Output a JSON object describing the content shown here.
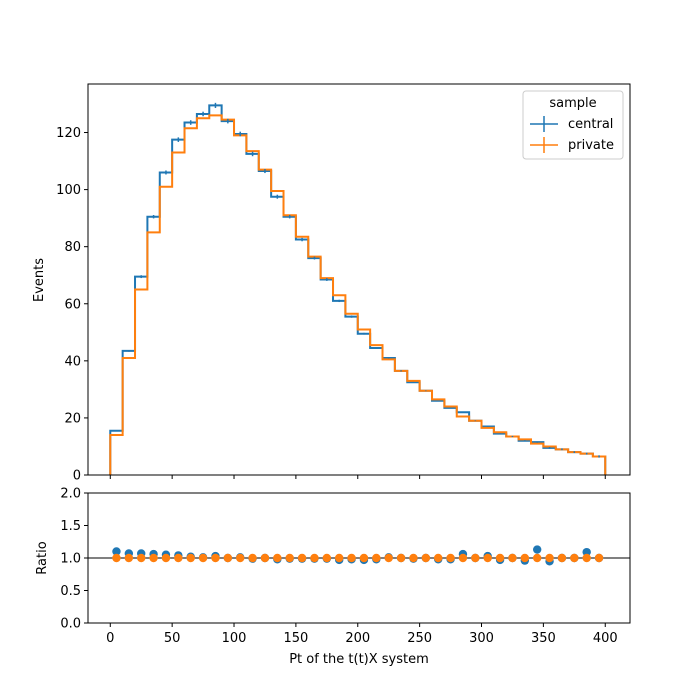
{
  "chart_data": {
    "type": "histogram-with-ratio",
    "bin_edges": [
      0,
      10,
      20,
      30,
      40,
      50,
      60,
      70,
      80,
      90,
      100,
      110,
      120,
      130,
      140,
      150,
      160,
      170,
      180,
      190,
      200,
      210,
      220,
      230,
      240,
      250,
      260,
      270,
      280,
      290,
      300,
      310,
      320,
      330,
      340,
      350,
      360,
      370,
      380,
      390,
      400
    ],
    "series": [
      {
        "name": "central",
        "color": "#1f77b4",
        "values": [
          15.5,
          43.5,
          69.5,
          90.5,
          106,
          117.5,
          123.5,
          126.5,
          129.5,
          124,
          119.5,
          112.5,
          106.5,
          97.5,
          90.5,
          82.5,
          76,
          68.5,
          61,
          55.5,
          49.5,
          44.5,
          41,
          36.5,
          32.5,
          29.5,
          26,
          23.5,
          22,
          19,
          17,
          14.5,
          13.5,
          12,
          11.5,
          9.5,
          9,
          8,
          7.5,
          6.5
        ],
        "errors": [
          0.6,
          1,
          1.2,
          1.3,
          1.4,
          1.5,
          1.5,
          1.5,
          1.6,
          1.5,
          1.5,
          1.5,
          1.4,
          1.4,
          1.3,
          1.3,
          1.2,
          1.2,
          1.1,
          1.1,
          1.0,
          1.0,
          0.9,
          0.9,
          0.8,
          0.8,
          0.8,
          0.7,
          0.7,
          0.6,
          0.6,
          0.6,
          0.5,
          0.5,
          0.5,
          0.4,
          0.4,
          0.4,
          0.4,
          0.3
        ]
      },
      {
        "name": "private",
        "color": "#ff7f0e",
        "values": [
          14,
          41,
          65,
          85,
          101,
          113,
          121.5,
          125,
          126,
          124.5,
          119,
          113.5,
          107,
          99.5,
          91,
          83.5,
          76.5,
          69,
          63,
          56.5,
          51,
          45.5,
          40.5,
          36.5,
          33,
          29.5,
          26.5,
          24,
          20.5,
          19,
          16.5,
          15,
          13.5,
          12.5,
          11,
          10,
          9,
          8,
          7.5,
          6.5
        ]
      }
    ],
    "ratio": {
      "central": [
        1.1,
        1.07,
        1.07,
        1.06,
        1.05,
        1.04,
        1.02,
        1.01,
        1.03,
        1.0,
        1.01,
        0.99,
        1.0,
        0.98,
        0.99,
        0.99,
        0.99,
        0.99,
        0.97,
        0.98,
        0.97,
        0.98,
        1.01,
        1.0,
        0.99,
        1.0,
        0.98,
        0.98,
        1.06,
        1.0,
        1.03,
        0.97,
        1.0,
        0.96,
        1.13,
        0.95,
        1.0,
        1.0,
        1.09,
        1.0
      ],
      "private": [
        1,
        1,
        1,
        1,
        1,
        1,
        1,
        1,
        1,
        1,
        1,
        1,
        1,
        1,
        1,
        1,
        1,
        1,
        1,
        1,
        1,
        1,
        1,
        1,
        1,
        1,
        1,
        1,
        1,
        1,
        1,
        1,
        1,
        1,
        1,
        1,
        1,
        1,
        1,
        1
      ],
      "reference_line": 1.0
    },
    "main_panel": {
      "ylabel": "Events",
      "ylim": [
        0,
        137
      ],
      "yticks": [
        0,
        20,
        40,
        60,
        80,
        100,
        120
      ],
      "grid": false
    },
    "ratio_panel": {
      "ylabel": "Ratio",
      "ylim": [
        0,
        2
      ],
      "yticks": [
        0.0,
        0.5,
        1.0,
        1.5,
        2.0
      ],
      "grid": false
    },
    "xlabel": "Pt of the t(t)X system",
    "xlim": [
      -18,
      420
    ],
    "xticks": [
      0,
      50,
      100,
      150,
      200,
      250,
      300,
      350,
      400
    ],
    "legend": {
      "title": "sample",
      "placement": "top-right",
      "entries": [
        "central",
        "private"
      ]
    }
  },
  "labels": {
    "ylabel_main": "Events",
    "ylabel_ratio": "Ratio",
    "xlabel": "Pt of the t(t)X system",
    "legend_title": "sample",
    "legend_central": "central",
    "legend_private": "private"
  }
}
